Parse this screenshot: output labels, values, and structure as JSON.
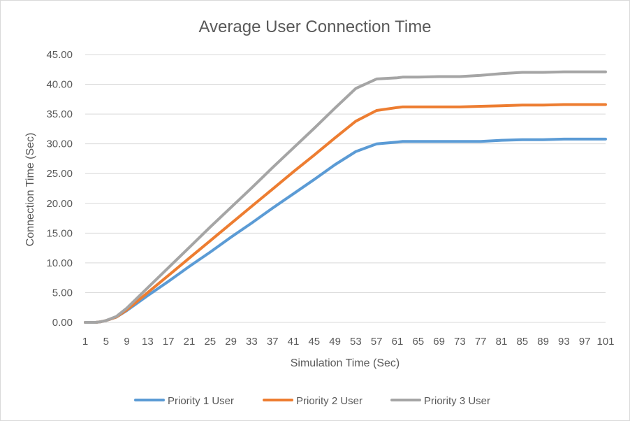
{
  "chart_data": {
    "type": "line",
    "title": "Average User Connection Time",
    "xlabel": "Simulation Time (Sec)",
    "ylabel": "Connection Time (Sec)",
    "ylim": [
      0,
      45
    ],
    "xlim": [
      1,
      101
    ],
    "y_ticks": [
      "0.00",
      "5.00",
      "10.00",
      "15.00",
      "20.00",
      "25.00",
      "30.00",
      "35.00",
      "40.00",
      "45.00"
    ],
    "x_ticks": [
      "1",
      "5",
      "9",
      "13",
      "17",
      "21",
      "25",
      "29",
      "33",
      "37",
      "41",
      "45",
      "49",
      "53",
      "57",
      "61",
      "65",
      "69",
      "73",
      "77",
      "81",
      "85",
      "89",
      "93",
      "97",
      "101"
    ],
    "grid": "horizontal",
    "legend_position": "bottom",
    "x": [
      1,
      3,
      4,
      5,
      7,
      9,
      13,
      17,
      21,
      25,
      29,
      33,
      37,
      41,
      45,
      49,
      53,
      57,
      61,
      62,
      63,
      64,
      65,
      69,
      73,
      77,
      81,
      85,
      89,
      93,
      97,
      101
    ],
    "series": [
      {
        "name": "Priority 1 User",
        "color": "#5b9bd5",
        "values": [
          0,
          0,
          0.1,
          0.3,
          0.9,
          2.0,
          4.5,
          6.9,
          9.4,
          11.8,
          14.3,
          16.7,
          19.2,
          21.6,
          24.0,
          26.5,
          28.7,
          30.0,
          30.3,
          30.4,
          30.4,
          30.4,
          30.4,
          30.4,
          30.4,
          30.4,
          30.6,
          30.7,
          30.7,
          30.8,
          30.8,
          30.8
        ]
      },
      {
        "name": "Priority 2 User",
        "color": "#ed7d31",
        "values": [
          0,
          0,
          0.1,
          0.3,
          0.9,
          2.1,
          5.0,
          7.9,
          10.8,
          13.7,
          16.6,
          19.5,
          22.4,
          25.3,
          28.1,
          31.0,
          33.8,
          35.6,
          36.1,
          36.2,
          36.2,
          36.2,
          36.2,
          36.2,
          36.2,
          36.3,
          36.4,
          36.5,
          36.5,
          36.6,
          36.6,
          36.6
        ]
      },
      {
        "name": "Priority 3 User",
        "color": "#a5a5a5",
        "values": [
          0,
          0,
          0.1,
          0.3,
          1.0,
          2.4,
          5.8,
          9.2,
          12.6,
          16.0,
          19.3,
          22.6,
          26.0,
          29.3,
          32.6,
          36.0,
          39.3,
          40.9,
          41.1,
          41.2,
          41.2,
          41.2,
          41.2,
          41.3,
          41.3,
          41.5,
          41.8,
          42.0,
          42.0,
          42.1,
          42.1,
          42.1
        ]
      }
    ]
  }
}
